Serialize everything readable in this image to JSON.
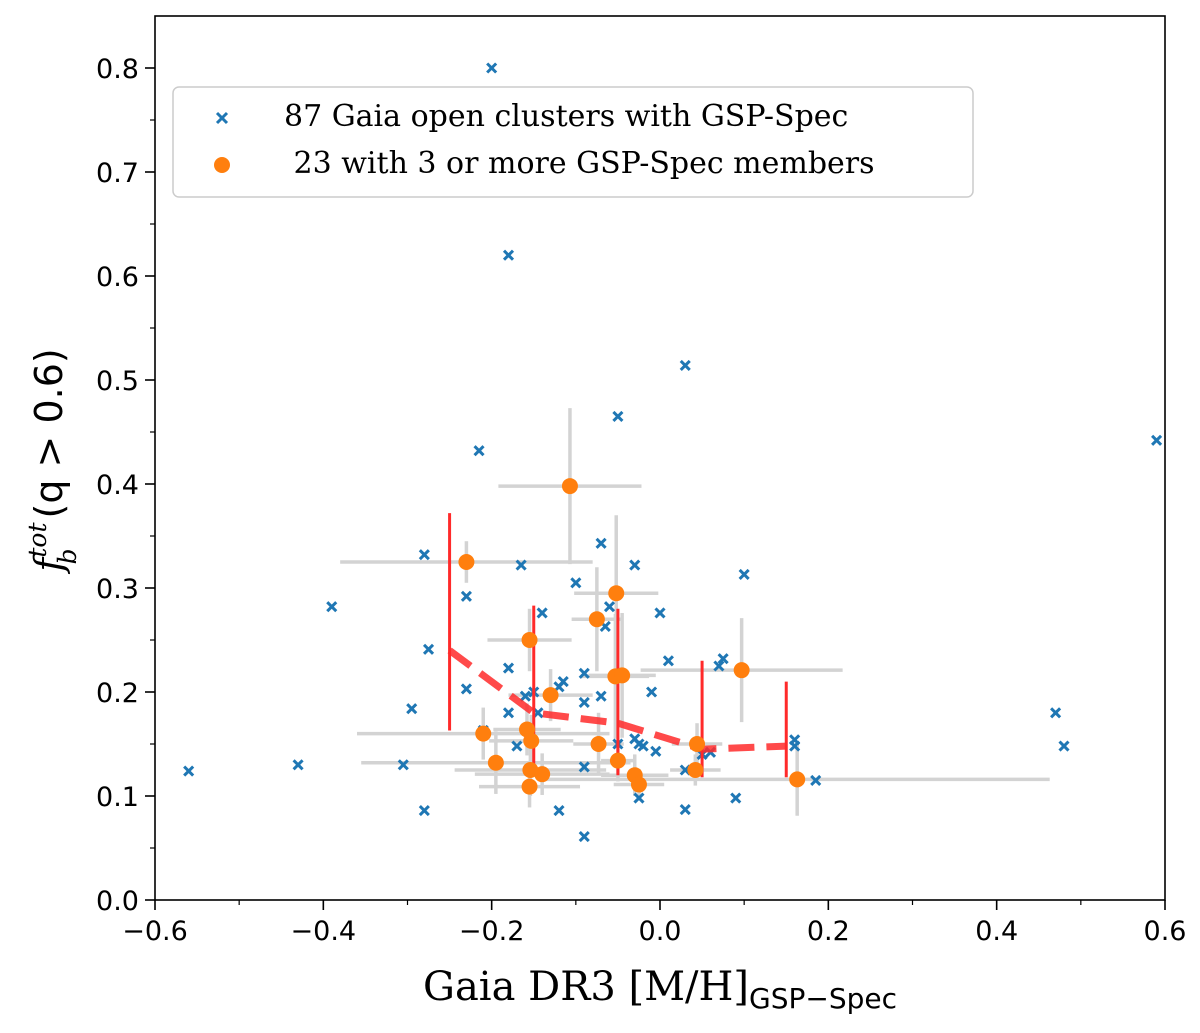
{
  "chart_data": {
    "type": "scatter",
    "xlabel": "Gaia DR3 [M/H]",
    "xlabel_sub": "GSP−Spec",
    "ylabel_main": "f",
    "ylabel_sup": "tot",
    "ylabel_sub": "b",
    "ylabel_rest": "(q > 0.6)",
    "xlim": [
      -0.6,
      0.6
    ],
    "ylim": [
      0.0,
      0.85
    ],
    "xticks": [
      -0.6,
      -0.4,
      -0.2,
      0.0,
      0.2,
      0.4,
      0.6
    ],
    "xtick_labels": [
      "−0.6",
      "−0.4",
      "−0.2",
      "0.0",
      "0.2",
      "0.4",
      "0.6"
    ],
    "yticks": [
      0.0,
      0.1,
      0.2,
      0.3,
      0.4,
      0.5,
      0.6,
      0.7,
      0.8
    ],
    "ytick_labels": [
      "0.0",
      "0.1",
      "0.2",
      "0.3",
      "0.4",
      "0.5",
      "0.6",
      "0.7",
      "0.8"
    ],
    "grid": false,
    "legend_position": "top-left",
    "colors": {
      "crosses": "#1f77b4",
      "circles": "#ff7f0e",
      "trend": "#ff2a2a",
      "errorbars": "#d3d3d3"
    },
    "series": [
      {
        "name": "87 Gaia open clusters with GSP-Spec",
        "marker": "x",
        "points": [
          [
            -0.56,
            0.124
          ],
          [
            -0.43,
            0.13
          ],
          [
            -0.39,
            0.282
          ],
          [
            -0.305,
            0.13
          ],
          [
            -0.295,
            0.184
          ],
          [
            -0.28,
            0.332
          ],
          [
            -0.28,
            0.086
          ],
          [
            -0.275,
            0.241
          ],
          [
            -0.23,
            0.292
          ],
          [
            -0.23,
            0.203
          ],
          [
            -0.215,
            0.432
          ],
          [
            -0.21,
            0.163
          ],
          [
            -0.2,
            0.8
          ],
          [
            -0.18,
            0.62
          ],
          [
            -0.18,
            0.223
          ],
          [
            -0.18,
            0.18
          ],
          [
            -0.17,
            0.148
          ],
          [
            -0.165,
            0.322
          ],
          [
            -0.16,
            0.196
          ],
          [
            -0.15,
            0.2
          ],
          [
            -0.145,
            0.18
          ],
          [
            -0.14,
            0.276
          ],
          [
            -0.12,
            0.086
          ],
          [
            -0.12,
            0.205
          ],
          [
            -0.115,
            0.21
          ],
          [
            -0.1,
            0.305
          ],
          [
            -0.09,
            0.218
          ],
          [
            -0.09,
            0.19
          ],
          [
            -0.09,
            0.128
          ],
          [
            -0.09,
            0.061
          ],
          [
            -0.07,
            0.343
          ],
          [
            -0.07,
            0.196
          ],
          [
            -0.065,
            0.263
          ],
          [
            -0.06,
            0.282
          ],
          [
            -0.05,
            0.465
          ],
          [
            -0.05,
            0.15
          ],
          [
            -0.03,
            0.322
          ],
          [
            -0.03,
            0.155
          ],
          [
            -0.025,
            0.15
          ],
          [
            -0.025,
            0.098
          ],
          [
            -0.02,
            0.148
          ],
          [
            -0.01,
            0.2
          ],
          [
            -0.005,
            0.143
          ],
          [
            0.0,
            0.276
          ],
          [
            0.01,
            0.23
          ],
          [
            0.03,
            0.514
          ],
          [
            0.03,
            0.125
          ],
          [
            0.03,
            0.087
          ],
          [
            0.05,
            0.14
          ],
          [
            0.06,
            0.142
          ],
          [
            0.07,
            0.225
          ],
          [
            0.075,
            0.232
          ],
          [
            0.09,
            0.098
          ],
          [
            0.1,
            0.313
          ],
          [
            0.16,
            0.154
          ],
          [
            0.16,
            0.148
          ],
          [
            0.185,
            0.115
          ],
          [
            0.47,
            0.18
          ],
          [
            0.48,
            0.148
          ],
          [
            0.59,
            0.442
          ]
        ]
      },
      {
        "name": " 23 with 3 or more GSP-Spec members",
        "marker": "o",
        "points": [
          {
            "x": -0.23,
            "y": 0.325,
            "xerr": [
              0.15,
              0.15
            ],
            "yerr": [
              0.02,
              0.02
            ]
          },
          {
            "x": -0.21,
            "y": 0.16,
            "xerr": [
              0.15,
              0.15
            ],
            "yerr": [
              0.025,
              0.025
            ]
          },
          {
            "x": -0.195,
            "y": 0.132,
            "xerr": [
              0.16,
              0.16
            ],
            "yerr": [
              0.03,
              0.03
            ]
          },
          {
            "x": -0.155,
            "y": 0.25,
            "xerr": [
              0.05,
              0.05
            ],
            "yerr": [
              0.03,
              0.03
            ]
          },
          {
            "x": -0.158,
            "y": 0.164,
            "xerr": [
              0.04,
              0.04
            ],
            "yerr": [
              0.025,
              0.025
            ]
          },
          {
            "x": -0.153,
            "y": 0.153,
            "xerr": [
              0.05,
              0.05
            ],
            "yerr": [
              0.025,
              0.025
            ]
          },
          {
            "x": -0.154,
            "y": 0.125,
            "xerr": [
              0.09,
              0.09
            ],
            "yerr": [
              0.025,
              0.025
            ]
          },
          {
            "x": -0.155,
            "y": 0.109,
            "xerr": [
              0.06,
              0.06
            ],
            "yerr": [
              0.02,
              0.02
            ]
          },
          {
            "x": -0.14,
            "y": 0.121,
            "xerr": [
              0.08,
              0.08
            ],
            "yerr": [
              0.02,
              0.02
            ]
          },
          {
            "x": -0.13,
            "y": 0.197,
            "xerr": [
              0.05,
              0.05
            ],
            "yerr": [
              0.025,
              0.025
            ]
          },
          {
            "x": -0.107,
            "y": 0.398,
            "xerr": [
              0.085,
              0.085
            ],
            "yerr": [
              0.075,
              0.075
            ]
          },
          {
            "x": -0.075,
            "y": 0.27,
            "xerr": [
              0.03,
              0.03
            ],
            "yerr": [
              0.05,
              0.05
            ]
          },
          {
            "x": -0.073,
            "y": 0.15,
            "xerr": [
              0.03,
              0.03
            ],
            "yerr": [
              0.03,
              0.03
            ]
          },
          {
            "x": -0.052,
            "y": 0.295,
            "xerr": [
              0.05,
              0.05
            ],
            "yerr": [
              0.075,
              0.075
            ]
          },
          {
            "x": -0.053,
            "y": 0.215,
            "xerr": [
              0.04,
              0.04
            ],
            "yerr": [
              0.06,
              0.06
            ]
          },
          {
            "x": -0.045,
            "y": 0.216,
            "xerr": [
              0.04,
              0.04
            ],
            "yerr": [
              0.06,
              0.06
            ]
          },
          {
            "x": -0.05,
            "y": 0.134,
            "xerr": [
              0.02,
              0.02
            ],
            "yerr": [
              0.02,
              0.02
            ]
          },
          {
            "x": -0.03,
            "y": 0.12,
            "xerr": [
              0.04,
              0.04
            ],
            "yerr": [
              0.02,
              0.02
            ]
          },
          {
            "x": -0.025,
            "y": 0.111,
            "xerr": [
              0.03,
              0.03
            ],
            "yerr": [
              0.015,
              0.015
            ]
          },
          {
            "x": 0.042,
            "y": 0.125,
            "xerr": [
              0.03,
              0.03
            ],
            "yerr": [
              0.015,
              0.015
            ]
          },
          {
            "x": 0.044,
            "y": 0.15,
            "xerr": [
              0.03,
              0.03
            ],
            "yerr": [
              0.02,
              0.02
            ]
          },
          {
            "x": 0.097,
            "y": 0.221,
            "xerr": [
              0.12,
              0.12
            ],
            "yerr": [
              0.05,
              0.05
            ]
          },
          {
            "x": 0.163,
            "y": 0.116,
            "xerr": [
              0.3,
              0.3
            ],
            "yerr": [
              0.035,
              0.035
            ]
          }
        ]
      }
    ],
    "trend": {
      "points": [
        [
          -0.25,
          0.24
        ],
        [
          -0.15,
          0.18
        ],
        [
          -0.05,
          0.17
        ],
        [
          0.05,
          0.145
        ],
        [
          0.15,
          0.148
        ]
      ],
      "errorbars": [
        {
          "x": -0.25,
          "y_low": 0.163,
          "y_high": 0.372
        },
        {
          "x": -0.15,
          "y_low": 0.123,
          "y_high": 0.283
        },
        {
          "x": -0.05,
          "y_low": 0.12,
          "y_high": 0.28
        },
        {
          "x": 0.05,
          "y_low": 0.118,
          "y_high": 0.23
        },
        {
          "x": 0.15,
          "y_low": 0.118,
          "y_high": 0.21
        }
      ]
    }
  }
}
